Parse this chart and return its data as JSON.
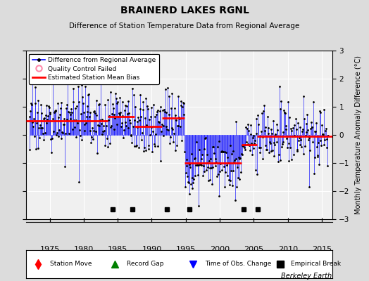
{
  "title": "BRAINERD LAKES RGNL",
  "subtitle": "Difference of Station Temperature Data from Regional Average",
  "ylabel": "Monthly Temperature Anomaly Difference (°C)",
  "credit": "Berkeley Earth",
  "xlim": [
    1971.5,
    2016.5
  ],
  "ylim": [
    -3,
    3
  ],
  "yticks": [
    -3,
    -2,
    -1,
    0,
    1,
    2,
    3
  ],
  "xticks": [
    1975,
    1980,
    1985,
    1990,
    1995,
    2000,
    2005,
    2010,
    2015
  ],
  "bg_color": "#dcdcdc",
  "plot_bg_color": "#f0f0f0",
  "segment_means": [
    {
      "start": 1971.5,
      "end": 1983.5,
      "mean": 0.5
    },
    {
      "start": 1983.5,
      "end": 1987.5,
      "mean": 0.65
    },
    {
      "start": 1987.5,
      "end": 1991.5,
      "mean": 0.3
    },
    {
      "start": 1991.5,
      "end": 1994.8,
      "mean": 0.6
    },
    {
      "start": 1994.8,
      "end": 2003.2,
      "mean": -1.0
    },
    {
      "start": 2003.2,
      "end": 2005.5,
      "mean": -0.35
    },
    {
      "start": 2005.5,
      "end": 2016.5,
      "mean": -0.05
    }
  ],
  "empirical_breaks": [
    1984.3,
    1987.2,
    1992.2,
    1995.5,
    2003.5,
    2005.6
  ],
  "seed": 17
}
